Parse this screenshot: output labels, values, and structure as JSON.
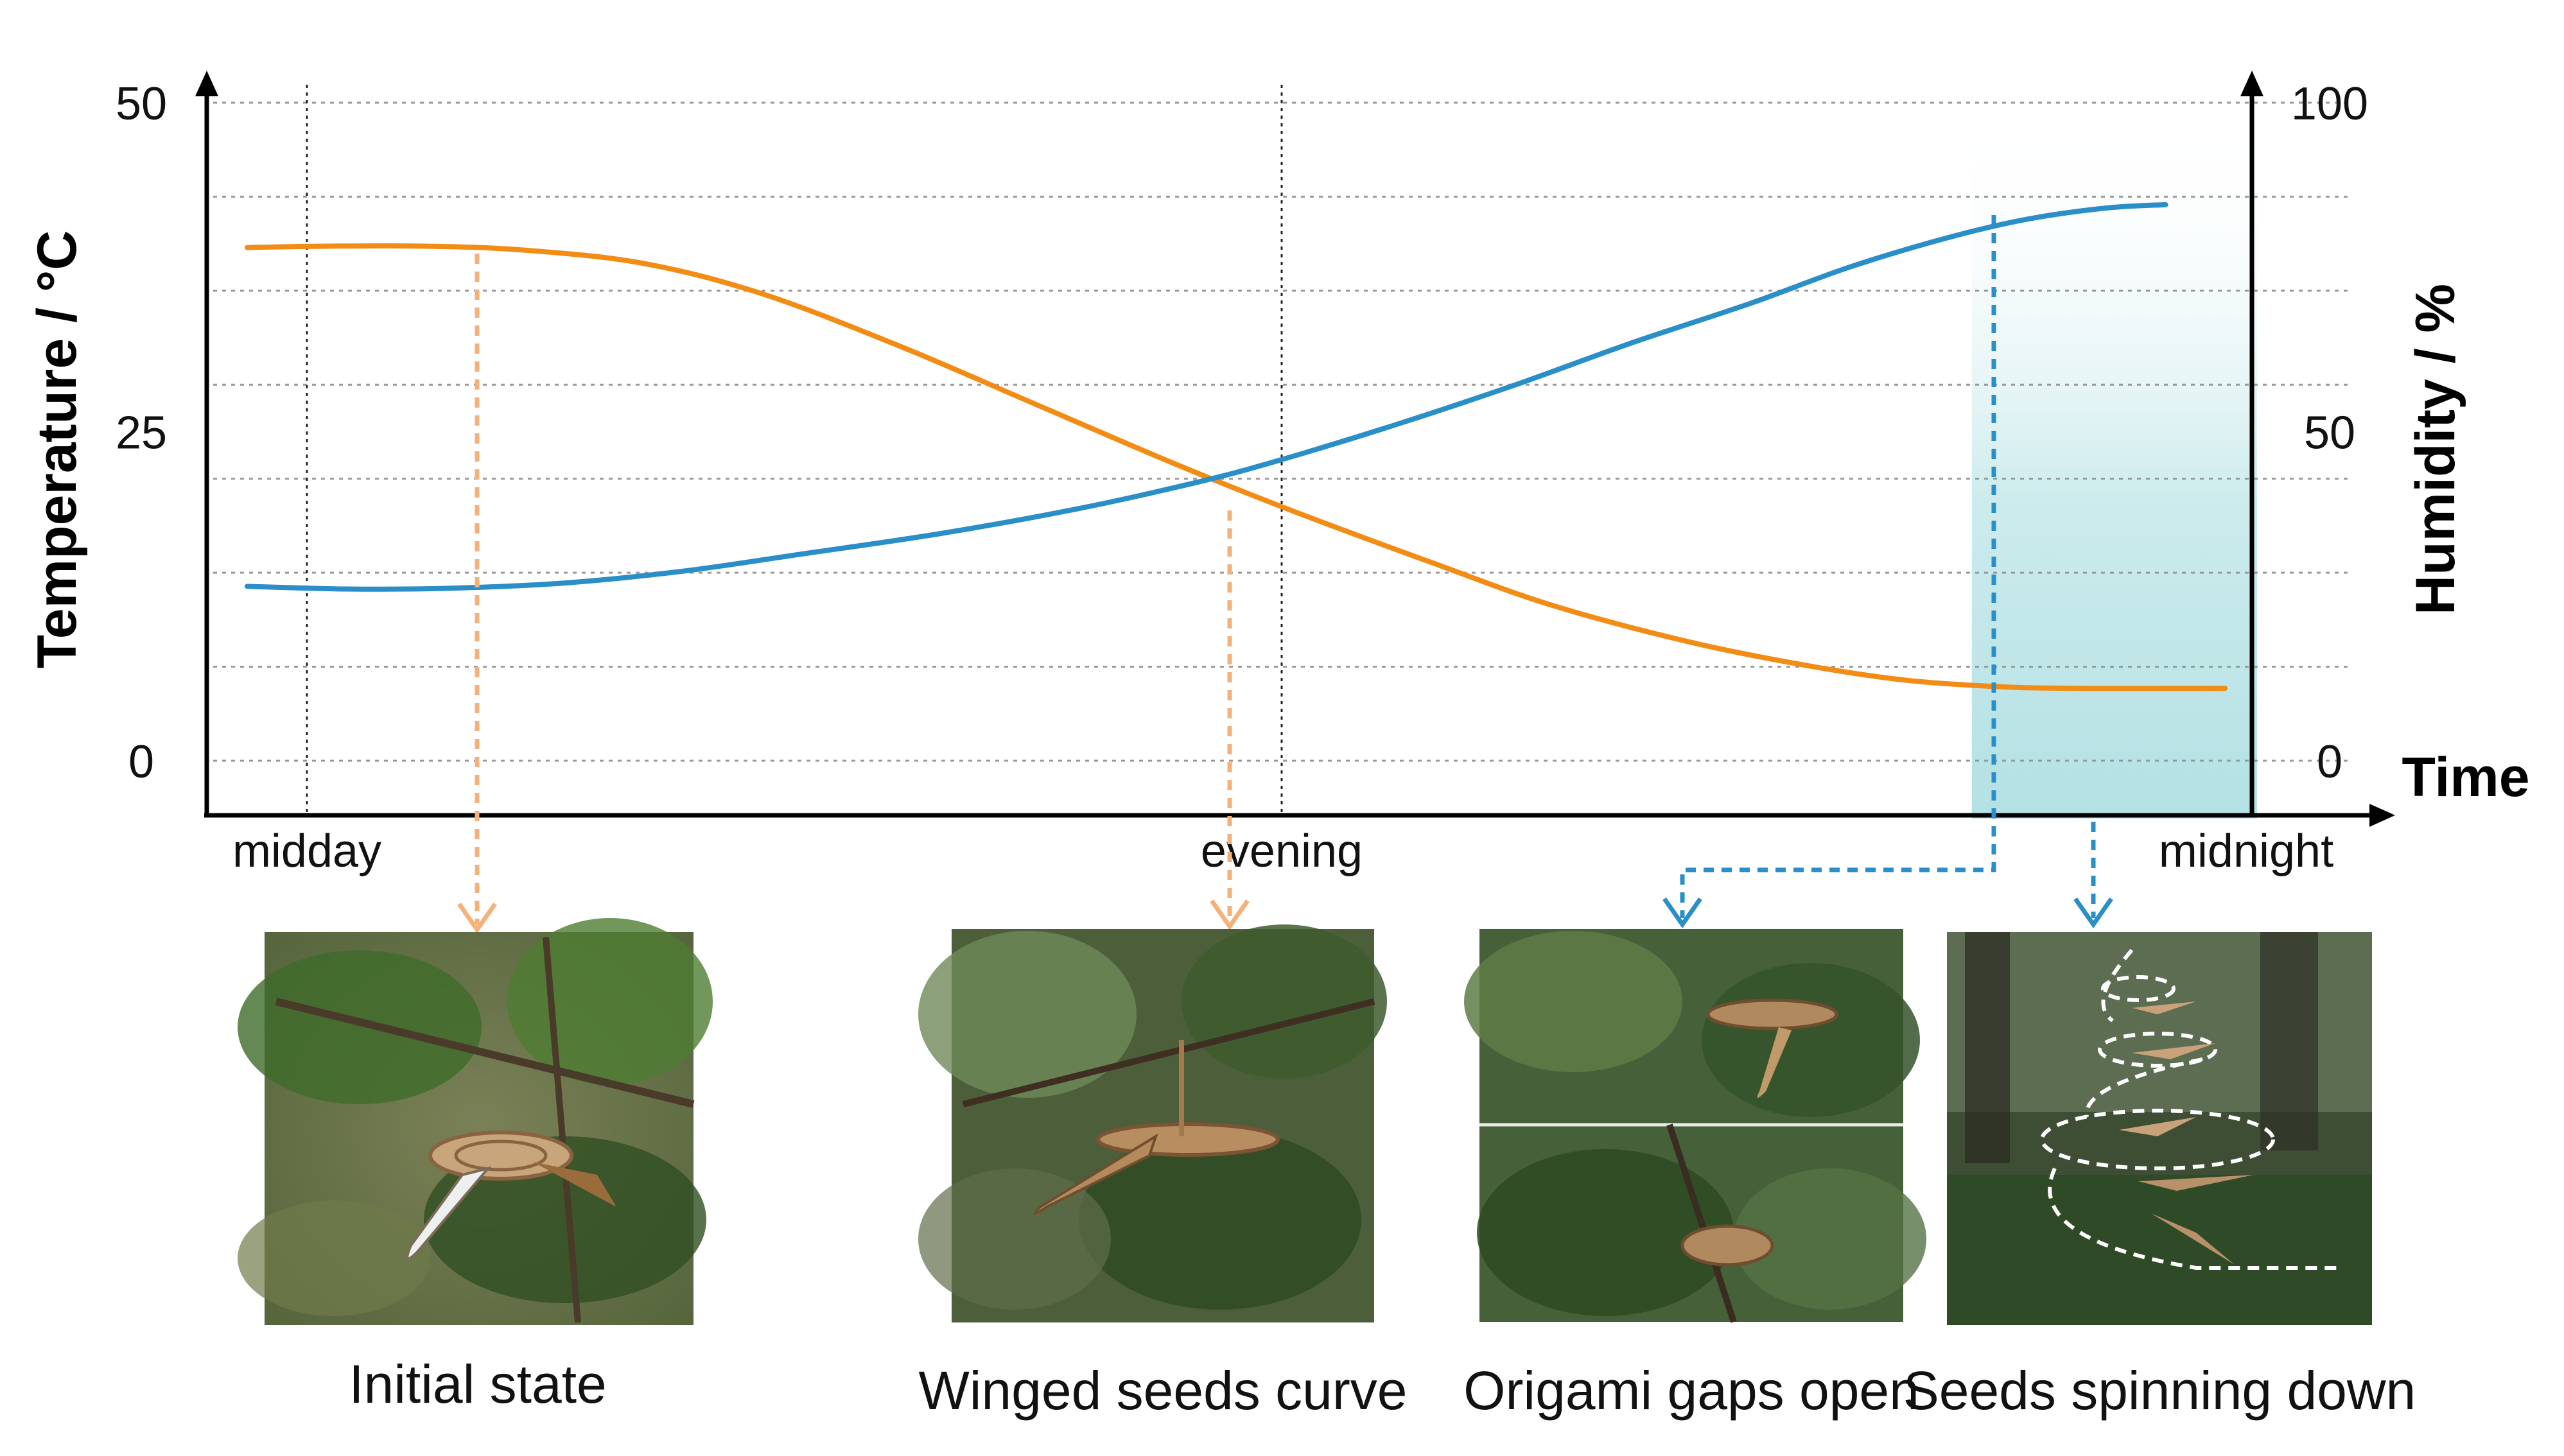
{
  "chart_data": {
    "type": "line",
    "x": {
      "label": "Time",
      "tick_labels": [
        "midday",
        "evening",
        "midnight"
      ]
    },
    "y_left": {
      "label": "Temperature / °C",
      "range": [
        0,
        50
      ],
      "ticks": [
        0,
        25,
        50
      ]
    },
    "y_right": {
      "label": "Humidity / %",
      "range": [
        0,
        100
      ],
      "ticks": [
        0,
        50,
        100
      ]
    },
    "grid": "horizontal dotted",
    "series": [
      {
        "axis": "left",
        "color": "#F28C14",
        "t": [
          0.0,
          0.04,
          0.09,
          0.14,
          0.2,
          0.26,
          0.33,
          0.4,
          0.47,
          0.53,
          0.6,
          0.66,
          0.73,
          0.79,
          0.84,
          0.89,
          0.93,
          0.97,
          1.0
        ],
        "values": [
          39.0,
          39.1,
          39.1,
          38.8,
          37.8,
          35.5,
          31.5,
          27.0,
          22.5,
          18.9,
          15.0,
          11.8,
          9.0,
          7.2,
          6.1,
          5.6,
          5.5,
          5.5,
          5.5
        ]
      },
      {
        "axis": "right",
        "color": "#2A8FC8",
        "t": [
          0.0,
          0.05,
          0.1,
          0.16,
          0.22,
          0.28,
          0.35,
          0.42,
          0.48,
          0.52,
          0.58,
          0.64,
          0.7,
          0.76,
          0.81,
          0.86,
          0.9,
          0.94,
          0.97
        ],
        "values": [
          26.5,
          26.1,
          26.2,
          27.0,
          28.8,
          31.4,
          34.5,
          38.3,
          42.3,
          45.5,
          51.0,
          57.0,
          63.5,
          69.5,
          75.0,
          79.5,
          82.3,
          84.0,
          84.5
        ]
      }
    ],
    "shaded_region": {
      "t_start": 0.872,
      "t_end": 1.0,
      "color": "#4BB8BE"
    },
    "panels": [
      {
        "caption": "Initial state",
        "arrow_color": "#F4B27A",
        "arrow_t": 0.13
      },
      {
        "caption": "Winged seeds curve",
        "arrow_color": "#F4B27A",
        "arrow_t": 0.5
      },
      {
        "caption": "Origami gaps open",
        "arrow_color": "#2A8FC8",
        "arrow_t": 0.872
      },
      {
        "caption": "Seeds spinning down",
        "arrow_color": "#2A8FC8",
        "arrow_t": 0.926
      }
    ]
  }
}
